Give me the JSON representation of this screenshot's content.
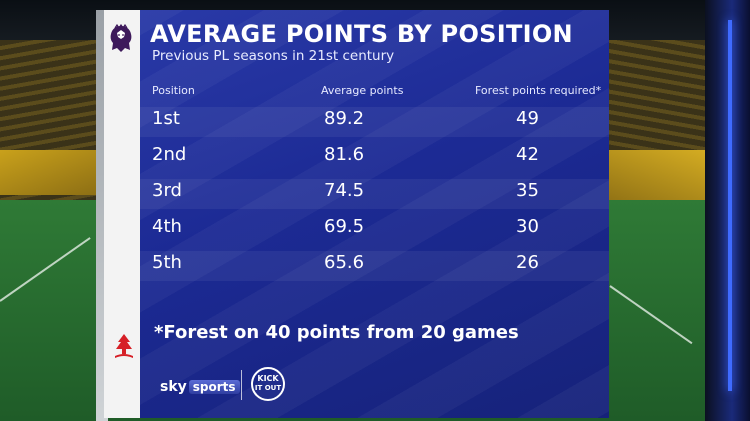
{
  "graphic": {
    "title": "AVERAGE POINTS BY POSITION",
    "subtitle": "Previous PL seasons in 21st century",
    "columns": {
      "position": "Position",
      "average_points": "Average points",
      "forest_required": "Forest points required*"
    },
    "rows": [
      {
        "position": "1st",
        "average_points": "89.2",
        "forest_required": "49"
      },
      {
        "position": "2nd",
        "average_points": "81.6",
        "forest_required": "42"
      },
      {
        "position": "3rd",
        "average_points": "74.5",
        "forest_required": "35"
      },
      {
        "position": "4th",
        "average_points": "69.5",
        "forest_required": "30"
      },
      {
        "position": "5th",
        "average_points": "65.6",
        "forest_required": "26"
      }
    ],
    "footnote": "*Forest on 40 points from 20 games"
  },
  "branding": {
    "broadcaster_sky": "sky",
    "broadcaster_sports": "sports",
    "campaign_logo_text": "KICK IT OUT",
    "league_logo": "premier-league-lion-icon",
    "club_logo": "nottingham-forest-tree-icon"
  },
  "colors": {
    "panel": "#1c2a94",
    "panel_light": "#2a3aa8",
    "text": "#ffffff",
    "side_strip": "#f3f3f3"
  }
}
